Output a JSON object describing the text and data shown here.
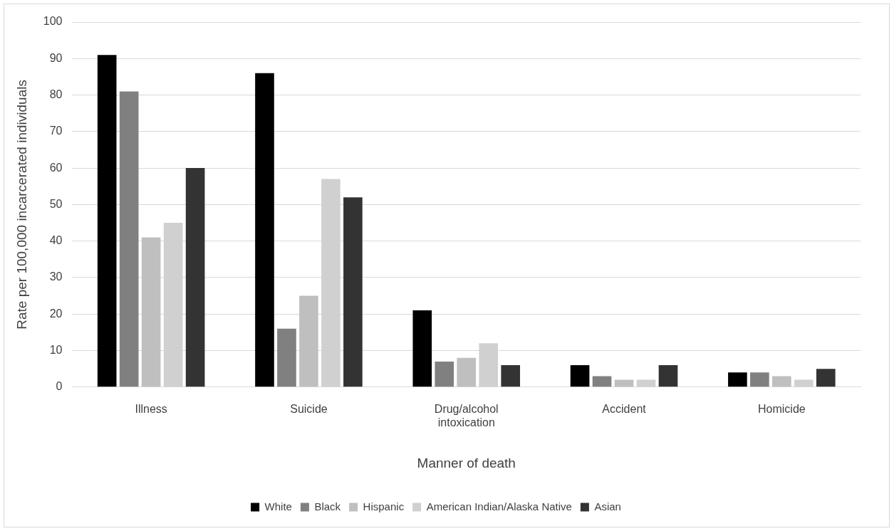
{
  "chart_data": {
    "type": "bar",
    "xlabel": "Manner of death",
    "ylabel": "Rate per 100,000 incarcerated individuals",
    "categories": [
      "Illness",
      "Suicide",
      "Drug/alcohol intoxication",
      "Accident",
      "Homicide"
    ],
    "series": [
      {
        "name": "White",
        "color": "#000000",
        "values": [
          91,
          86,
          21,
          6,
          4
        ]
      },
      {
        "name": "Black",
        "color": "#808080",
        "values": [
          81,
          16,
          7,
          3,
          4
        ]
      },
      {
        "name": "Hispanic",
        "color": "#bfbfbf",
        "values": [
          41,
          25,
          8,
          2,
          3
        ]
      },
      {
        "name": "American Indian/Alaska Native",
        "color": "#d0d0d0",
        "values": [
          45,
          57,
          12,
          2,
          2
        ]
      },
      {
        "name": "Asian",
        "color": "#333333",
        "values": [
          60,
          52,
          6,
          6,
          5
        ]
      }
    ],
    "ylim": [
      0,
      100
    ],
    "yticks": [
      0,
      10,
      20,
      30,
      40,
      50,
      60,
      70,
      80,
      90,
      100
    ],
    "grid": "y",
    "legend": "bottom"
  }
}
